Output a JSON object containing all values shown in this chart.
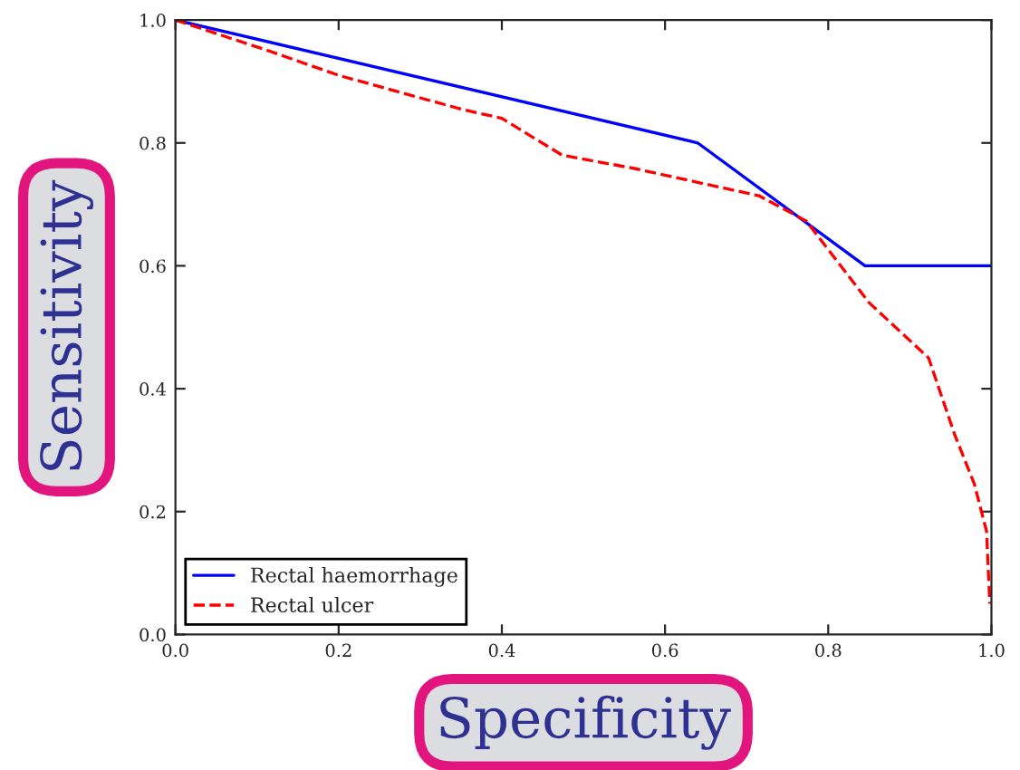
{
  "chart_data": {
    "type": "line",
    "xlabel": "Specificity",
    "ylabel": "Sensitivity",
    "xlim": [
      0,
      1
    ],
    "ylim": [
      0,
      1
    ],
    "xticks": [
      {
        "value": 0,
        "label": "0.0"
      },
      0.2,
      0.4,
      0.6,
      0.8,
      {
        "value": 1,
        "label": "1.0"
      }
    ],
    "yticks": [
      {
        "value": 0,
        "label": "0.0"
      },
      0.2,
      0.4,
      0.6,
      0.8,
      {
        "value": 1,
        "label": "1.0"
      }
    ],
    "legend": "bottom left",
    "grid": false,
    "series": [
      {
        "name": "Rectal haemorrhage",
        "color": "#0000ff",
        "line_style": "solid",
        "x": [
          0,
          0.64,
          0.845,
          1
        ],
        "values": [
          1,
          0.8,
          0.6,
          0.6
        ]
      },
      {
        "name": "Rectal ulcer",
        "color": "#ff0000",
        "line_style": "dashed",
        "x": [
          0,
          0.114,
          0.2,
          0.35,
          0.4,
          0.474,
          0.564,
          0.715,
          0.773,
          0.85,
          0.923,
          0.955,
          0.979,
          0.994,
          0.998
        ],
        "values": [
          1,
          0.95,
          0.91,
          0.855,
          0.84,
          0.78,
          0.758,
          0.714,
          0.673,
          0.54,
          0.45,
          0.325,
          0.245,
          0.168,
          0.05
        ]
      }
    ]
  }
}
